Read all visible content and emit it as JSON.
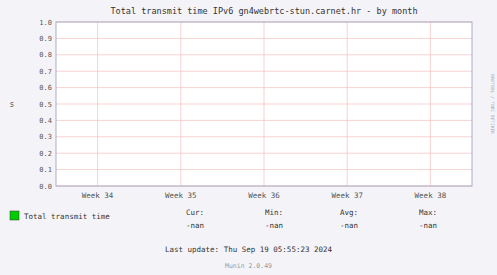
{
  "chart_data": {
    "type": "line",
    "title": "Total transmit time IPv6 gn4webrtc-stun.carnet.hr - by month",
    "ylabel": "s",
    "categories": [
      "Week 34",
      "Week 35",
      "Week 36",
      "Week 37",
      "Week 38"
    ],
    "series": [
      {
        "name": "Total transmit time",
        "color": "#00cc00",
        "values": [
          null,
          null,
          null,
          null,
          null
        ]
      }
    ],
    "ylim": [
      0.0,
      1.0
    ],
    "yticks": [
      {
        "value": 0.0,
        "label": "0.0"
      },
      0.1,
      0.2,
      0.3,
      0.4,
      0.5,
      0.6,
      0.7,
      0.8,
      0.9,
      {
        "value": 1.0,
        "label": "1.0"
      }
    ],
    "grid": true,
    "legend": "bottom",
    "annotations": [
      "Cur:",
      "Min:",
      "Avg:",
      "Max:",
      "-nan",
      "-nan",
      "-nan",
      "-nan",
      "Last update: Thu Sep 19 05:55:23 2024",
      "Munin 2.0.49",
      "RRDTOOL / TOBI OETIKER"
    ]
  }
}
